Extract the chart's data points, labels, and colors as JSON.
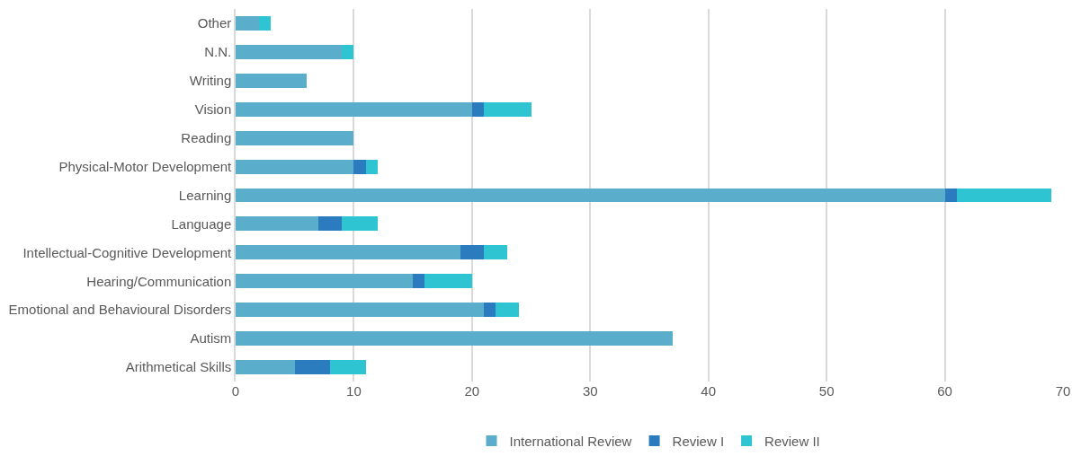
{
  "chart_data": {
    "type": "bar",
    "orientation": "horizontal",
    "stacked": true,
    "categories": [
      "Other",
      "N.N.",
      "Writing",
      "Vision",
      "Reading",
      "Physical-Motor Development",
      "Learning",
      "Language",
      "Intellectual-Cognitive Development",
      "Hearing/Communication",
      "Emotional and Behavioural Disorders",
      "Autism",
      "Arithmetical Skills"
    ],
    "series": [
      {
        "name": "International Review",
        "color": "#5aaecb",
        "values": [
          2,
          9,
          6,
          20,
          10,
          10,
          60,
          7,
          19,
          15,
          21,
          37,
          5
        ]
      },
      {
        "name": "Review I",
        "color": "#2a7cbf",
        "values": [
          0,
          0,
          0,
          1,
          0,
          1,
          1,
          2,
          2,
          1,
          1,
          0,
          3
        ]
      },
      {
        "name": "Review II",
        "color": "#2ec4d2",
        "values": [
          1,
          1,
          0,
          4,
          0,
          1,
          8,
          3,
          2,
          4,
          2,
          0,
          3
        ]
      }
    ],
    "xlim": [
      0,
      70
    ],
    "xticks": [
      0,
      10,
      20,
      30,
      40,
      50,
      60,
      70
    ],
    "grid": "x",
    "legend": "bottom"
  }
}
